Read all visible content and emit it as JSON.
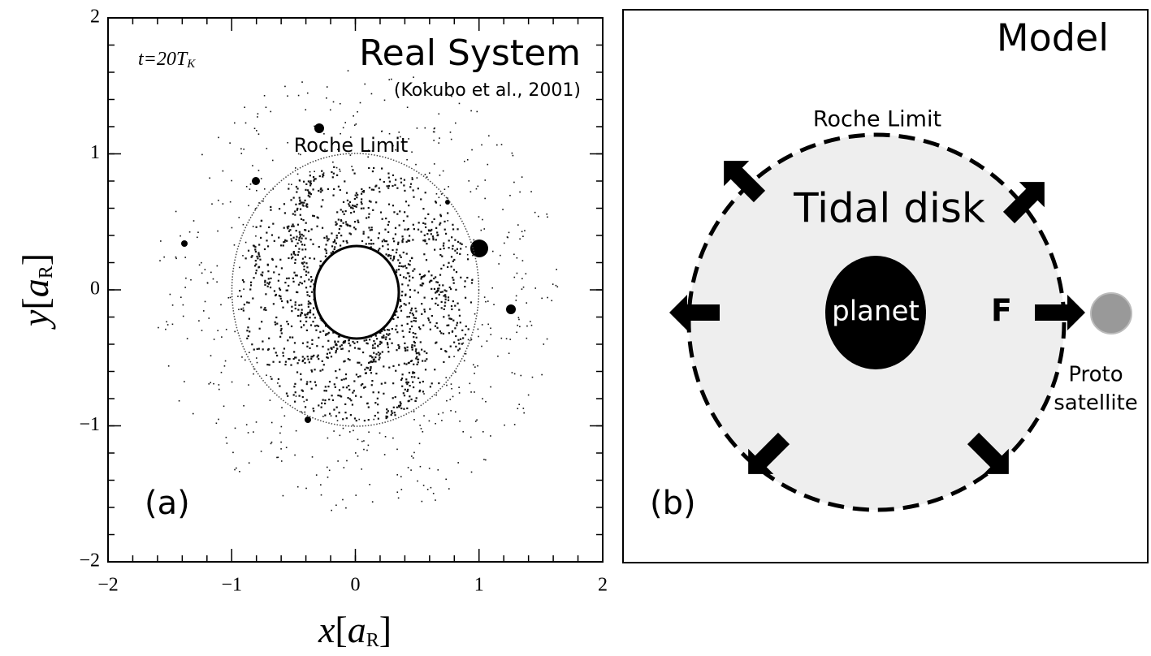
{
  "panel_a": {
    "title": "Real System",
    "citation": "(Kokubo et al., 2001)",
    "time_label": [
      "t=20T",
      "K"
    ],
    "roche_label": "Roche Limit",
    "label": "(a)",
    "x_axis": {
      "label": [
        "x",
        "[",
        "a",
        "R",
        "]"
      ],
      "lim": [
        -2,
        2
      ],
      "ticks": [
        {
          "value": -2,
          "label": "−2"
        },
        {
          "value": -1,
          "label": "−1"
        },
        0,
        1,
        2
      ]
    },
    "y_axis": {
      "label": [
        "y",
        "[",
        "a",
        "R",
        "]"
      ],
      "lim": [
        -2,
        2
      ],
      "ticks": [
        {
          "value": -2,
          "label": "−2"
        },
        {
          "value": -1,
          "label": "−1"
        },
        0,
        1,
        2
      ]
    }
  },
  "panel_b": {
    "title": "Model",
    "roche_label": "Roche Limit",
    "disk_label": "Tidal disk",
    "planet_label": "planet",
    "force_label": "F",
    "satellite_label": [
      "Proto",
      "satellite"
    ],
    "label": "(b)"
  }
}
